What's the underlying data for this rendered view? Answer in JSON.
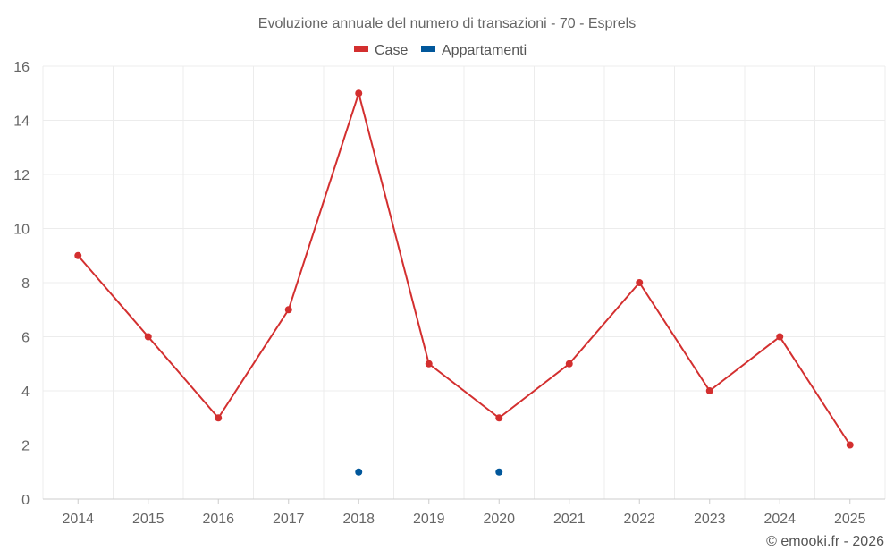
{
  "chart_data": {
    "type": "line",
    "title": "Evoluzione annuale del numero di transazioni - 70 - Esprels",
    "categories": [
      "2014",
      "2015",
      "2016",
      "2017",
      "2018",
      "2019",
      "2020",
      "2021",
      "2022",
      "2023",
      "2024",
      "2025"
    ],
    "series": [
      {
        "name": "Case",
        "color": "#d32f2f",
        "values": [
          9,
          6,
          3,
          7,
          15,
          5,
          3,
          5,
          8,
          4,
          6,
          2
        ]
      },
      {
        "name": "Appartamenti",
        "color": "#01579b",
        "values": [
          null,
          null,
          null,
          null,
          1,
          null,
          1,
          null,
          null,
          null,
          null,
          null
        ]
      }
    ],
    "ylim": [
      0,
      16
    ],
    "yticks": [
      "0",
      "2",
      "4",
      "6",
      "8",
      "10",
      "12",
      "14",
      "16"
    ],
    "xlabel": "",
    "ylabel": "",
    "grid": true,
    "legend_position": "top-center"
  },
  "credit": "© emooki.fr - 2026"
}
